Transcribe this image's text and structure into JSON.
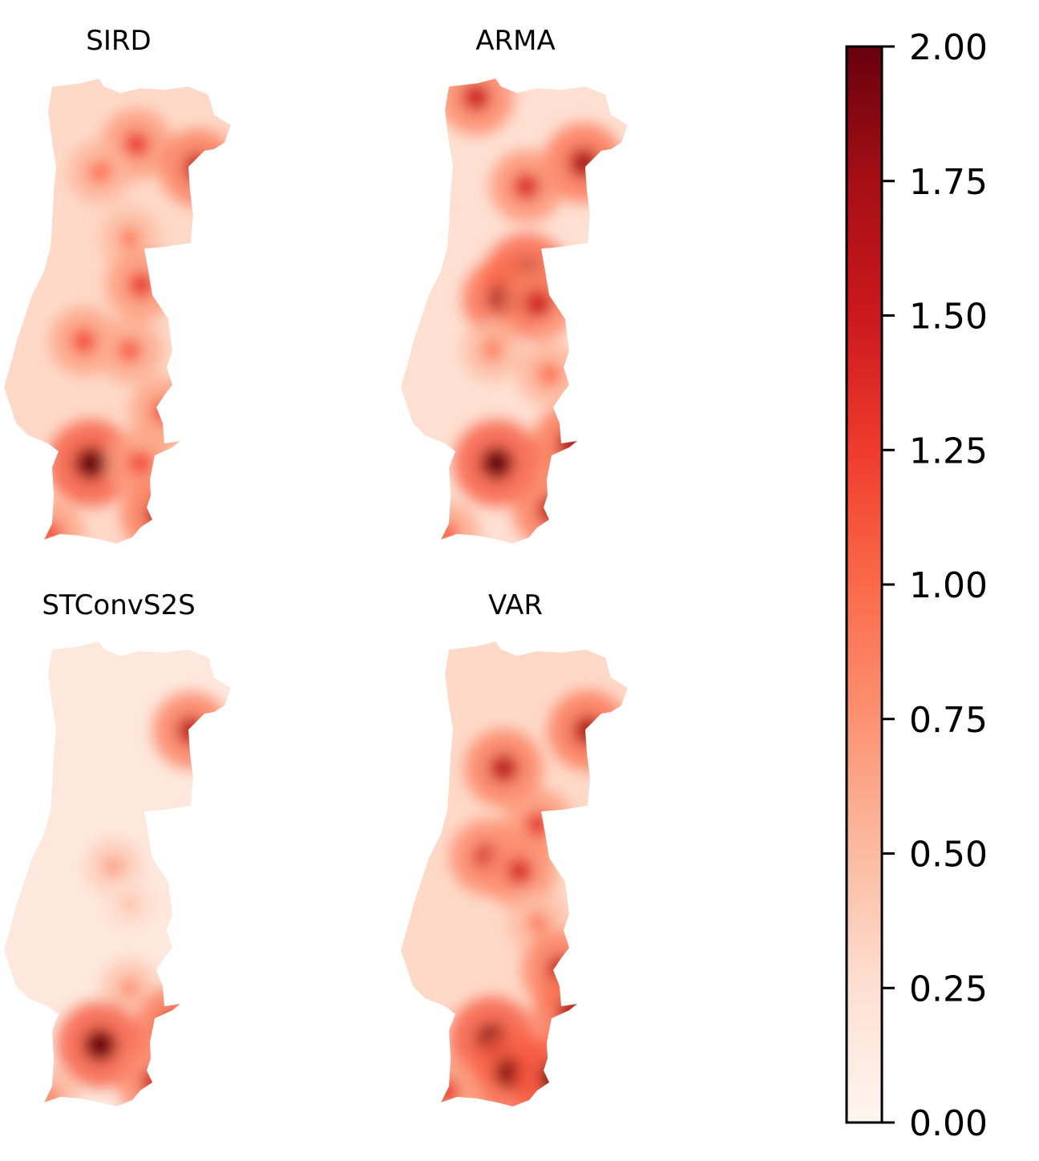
{
  "chart_data": {
    "type": "heatmap",
    "colormap": "Reds",
    "colormap_stops": [
      "#fff5f0",
      "#fee0d2",
      "#fcbba1",
      "#fc9272",
      "#fb6a4a",
      "#ef3b2c",
      "#cb181d",
      "#a50f15",
      "#67000d"
    ],
    "panels": [
      {
        "title": "SIRD",
        "hotspots": [
          {
            "lon": 0.58,
            "lat": 0.14,
            "value": 1.3
          },
          {
            "lon": 0.85,
            "lat": 0.19,
            "value": 1.6
          },
          {
            "lon": 0.42,
            "lat": 0.2,
            "value": 1.0
          },
          {
            "lon": 0.55,
            "lat": 0.34,
            "value": 0.9
          },
          {
            "lon": 0.6,
            "lat": 0.44,
            "value": 1.3
          },
          {
            "lon": 0.35,
            "lat": 0.56,
            "value": 1.2
          },
          {
            "lon": 0.55,
            "lat": 0.58,
            "value": 1.1
          },
          {
            "lon": 0.7,
            "lat": 0.71,
            "value": 1.2
          },
          {
            "lon": 0.38,
            "lat": 0.82,
            "value": 2.0
          },
          {
            "lon": 0.6,
            "lat": 0.82,
            "value": 1.2
          },
          {
            "lon": 0.68,
            "lat": 0.93,
            "value": 1.6
          },
          {
            "lon": 0.2,
            "lat": 0.97,
            "value": 1.2
          }
        ],
        "background_value": 0.3
      },
      {
        "title": "ARMA",
        "hotspots": [
          {
            "lon": 0.33,
            "lat": 0.04,
            "value": 1.5
          },
          {
            "lon": 0.8,
            "lat": 0.18,
            "value": 1.7
          },
          {
            "lon": 0.55,
            "lat": 0.23,
            "value": 1.4
          },
          {
            "lon": 0.55,
            "lat": 0.42,
            "value": 1.9
          },
          {
            "lon": 0.45,
            "lat": 0.47,
            "value": 1.8
          },
          {
            "lon": 0.6,
            "lat": 0.48,
            "value": 1.5
          },
          {
            "lon": 0.4,
            "lat": 0.58,
            "value": 0.9
          },
          {
            "lon": 0.65,
            "lat": 0.63,
            "value": 1.0
          },
          {
            "lon": 0.42,
            "lat": 0.82,
            "value": 2.0
          },
          {
            "lon": 0.75,
            "lat": 0.78,
            "value": 1.7
          },
          {
            "lon": 0.66,
            "lat": 0.92,
            "value": 1.6
          },
          {
            "lon": 0.2,
            "lat": 0.97,
            "value": 1.1
          }
        ],
        "background_value": 0.25
      },
      {
        "title": "STConvS2S",
        "hotspots": [
          {
            "lon": 0.82,
            "lat": 0.19,
            "value": 1.6
          },
          {
            "lon": 0.48,
            "lat": 0.48,
            "value": 0.7
          },
          {
            "lon": 0.55,
            "lat": 0.56,
            "value": 0.5
          },
          {
            "lon": 0.55,
            "lat": 0.74,
            "value": 0.8
          },
          {
            "lon": 0.42,
            "lat": 0.86,
            "value": 2.0
          },
          {
            "lon": 0.75,
            "lat": 0.82,
            "value": 1.7
          },
          {
            "lon": 0.66,
            "lat": 0.94,
            "value": 1.5
          },
          {
            "lon": 0.2,
            "lat": 0.97,
            "value": 0.9
          }
        ],
        "background_value": 0.15
      },
      {
        "title": "VAR",
        "hotspots": [
          {
            "lon": 0.82,
            "lat": 0.19,
            "value": 1.7
          },
          {
            "lon": 0.45,
            "lat": 0.27,
            "value": 1.6
          },
          {
            "lon": 0.6,
            "lat": 0.39,
            "value": 1.3
          },
          {
            "lon": 0.38,
            "lat": 0.46,
            "value": 1.5
          },
          {
            "lon": 0.52,
            "lat": 0.49,
            "value": 1.4
          },
          {
            "lon": 0.6,
            "lat": 0.6,
            "value": 0.9
          },
          {
            "lon": 0.7,
            "lat": 0.7,
            "value": 1.6
          },
          {
            "lon": 0.4,
            "lat": 0.85,
            "value": 2.0
          },
          {
            "lon": 0.48,
            "lat": 0.92,
            "value": 1.9
          },
          {
            "lon": 0.68,
            "lat": 0.93,
            "value": 2.0
          },
          {
            "lon": 0.75,
            "lat": 0.79,
            "value": 1.7
          },
          {
            "lon": 0.2,
            "lat": 0.96,
            "value": 1.3
          }
        ],
        "background_value": 0.3
      }
    ],
    "colorbar": {
      "range": [
        0.0,
        2.0
      ],
      "ticks": [
        0.0,
        0.25,
        0.5,
        0.75,
        1.0,
        1.25,
        1.5,
        1.75,
        2.0
      ],
      "tick_labels": [
        "0.00",
        "0.25",
        "0.50",
        "0.75",
        "1.00",
        "1.25",
        "1.50",
        "1.75",
        "2.00"
      ]
    }
  }
}
